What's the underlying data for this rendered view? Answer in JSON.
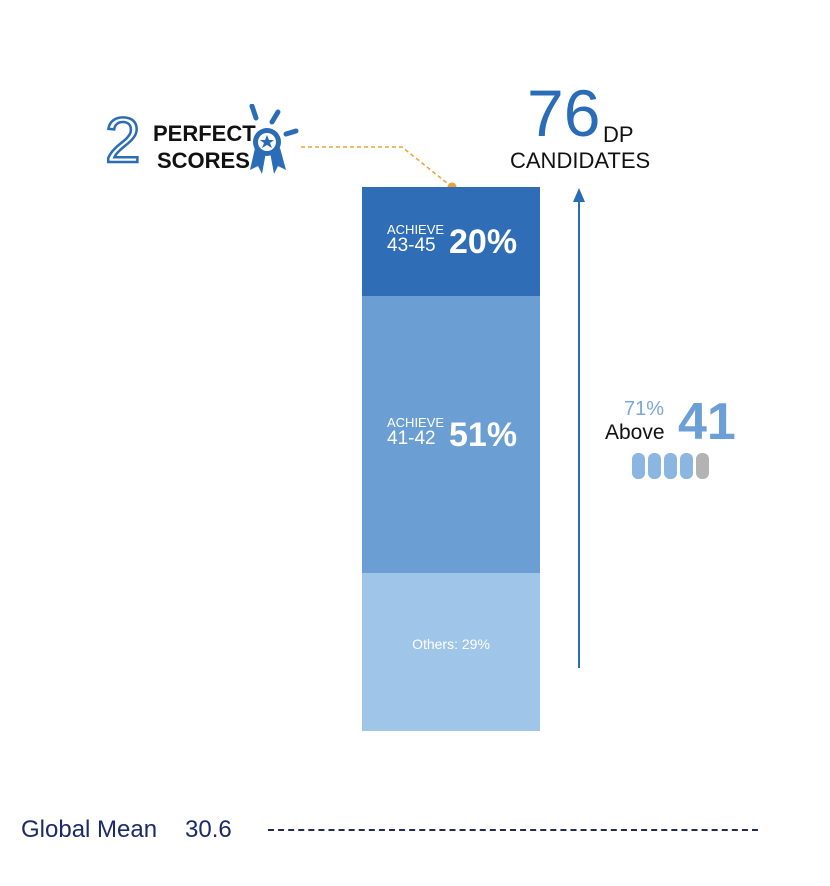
{
  "perfect_scores": {
    "number": "2",
    "line1": "PERFECT",
    "line2": "SCORES"
  },
  "candidates": {
    "count": "76",
    "unit": "DP",
    "label": "CANDIDATES"
  },
  "colors": {
    "top": "#2f6db7",
    "middle": "#6b9fd3",
    "bottom": "#9fc5e8",
    "connector": "#e8a43a",
    "arrow": "#2a6cb6",
    "pill_blue": "#8cb6e2",
    "pill_gray": "#b3b3b3"
  },
  "above": {
    "pct": "71%",
    "label": "Above",
    "score": "41",
    "pills": [
      "blue",
      "blue",
      "blue",
      "blue",
      "gray"
    ]
  },
  "global_mean": {
    "label": "Global Mean",
    "value": "30.6"
  },
  "chart_data": {
    "type": "bar",
    "stacked": true,
    "categories": [
      "43-45",
      "41-42",
      "Others"
    ],
    "segments": [
      {
        "prefix": "ACHIEVE",
        "range": "43-45",
        "value": 20,
        "label": "20%"
      },
      {
        "prefix": "ACHIEVE",
        "range": "41-42",
        "value": 51,
        "label": "51%"
      },
      {
        "prefix": "",
        "range": "",
        "value": 29,
        "label": "Others: 29%"
      }
    ],
    "total": 100
  }
}
